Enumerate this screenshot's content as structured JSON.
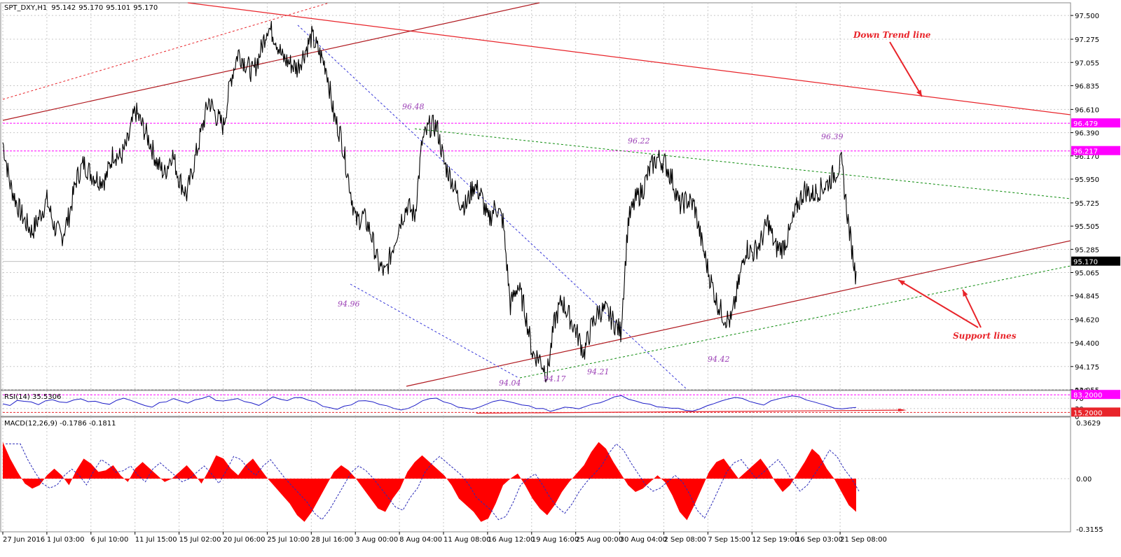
{
  "chart_data": [
    {
      "type": "line",
      "panel": "price",
      "title": "SPT_DXY,H1",
      "ohlc_header": [
        "95.142",
        "95.170",
        "95.101",
        "95.170"
      ],
      "ylim": [
        93.955,
        97.62
      ],
      "y_tick_labels": [
        "97.500",
        "97.275",
        "97.055",
        "96.835",
        "96.610",
        "96.390",
        "96.170",
        "95.950",
        "95.725",
        "95.505",
        "95.285",
        "95.065",
        "94.845",
        "94.620",
        "94.400",
        "94.175",
        "93.955"
      ],
      "x_tick_labels": [
        "27 Jun 2016",
        "1 Jul 03:00",
        "6 Jul 10:00",
        "11 Jul 15:00",
        "15 Jul 02:00",
        "20 Jul 06:00",
        "25 Jul 10:00",
        "28 Jul 16:00",
        "3 Aug 00:00",
        "8 Aug 04:00",
        "11 Aug 08:00",
        "16 Aug 12:00",
        "19 Aug 16:00",
        "25 Aug 00:00",
        "30 Aug 04:00",
        "2 Sep 08:00",
        "7 Sep 15:00",
        "12 Sep 19:00",
        "16 Sep 03:00",
        "21 Sep 08:00"
      ],
      "series": [
        {
          "values": [
            [
              0,
              96.3
            ],
            [
              1,
              95.9
            ],
            [
              2,
              95.7
            ],
            [
              3,
              95.55
            ],
            [
              4,
              95.45
            ],
            [
              5,
              95.6
            ],
            [
              6,
              95.75
            ],
            [
              7,
              95.5
            ],
            [
              8,
              95.4
            ],
            [
              9,
              95.6
            ],
            [
              10,
              95.95
            ],
            [
              11,
              96.1
            ],
            [
              12,
              96.0
            ],
            [
              13,
              95.95
            ],
            [
              14,
              95.95
            ],
            [
              15,
              96.2
            ],
            [
              16,
              96.15
            ],
            [
              17,
              96.3
            ],
            [
              18,
              96.6
            ],
            [
              19,
              96.45
            ],
            [
              20,
              96.3
            ],
            [
              21,
              96.1
            ],
            [
              22,
              96.0
            ],
            [
              23,
              96.2
            ],
            [
              24,
              95.95
            ],
            [
              25,
              95.8
            ],
            [
              26,
              96.1
            ],
            [
              27,
              96.4
            ],
            [
              28,
              96.7
            ],
            [
              29,
              96.55
            ],
            [
              30,
              96.45
            ],
            [
              31,
              96.9
            ],
            [
              32,
              97.15
            ],
            [
              33,
              97.05
            ],
            [
              34,
              96.95
            ],
            [
              35,
              97.15
            ],
            [
              36,
              97.4
            ],
            [
              37,
              97.3
            ],
            [
              38,
              97.1
            ],
            [
              39,
              97.05
            ],
            [
              40,
              97.0
            ],
            [
              41,
              97.15
            ],
            [
              42,
              97.3
            ],
            [
              43,
              97.15
            ],
            [
              44,
              97.0
            ],
            [
              45,
              96.55
            ],
            [
              46,
              96.35
            ],
            [
              47,
              95.95
            ],
            [
              48,
              95.55
            ],
            [
              49,
              95.6
            ],
            [
              50,
              95.45
            ],
            [
              51,
              95.15
            ],
            [
              52,
              95.05
            ],
            [
              53,
              95.3
            ],
            [
              54,
              95.55
            ],
            [
              55,
              95.7
            ],
            [
              56,
              95.6
            ],
            [
              57,
              96.3
            ],
            [
              58,
              96.45
            ],
            [
              59,
              96.45
            ],
            [
              60,
              96.1
            ],
            [
              61,
              95.95
            ],
            [
              62,
              95.75
            ],
            [
              63,
              95.7
            ],
            [
              64,
              95.9
            ],
            [
              65,
              95.8
            ],
            [
              66,
              95.55
            ],
            [
              67,
              95.7
            ],
            [
              68,
              95.55
            ],
            [
              69,
              94.75
            ],
            [
              70,
              94.95
            ],
            [
              71,
              94.7
            ],
            [
              72,
              94.3
            ],
            [
              73,
              94.25
            ],
            [
              74,
              94.1
            ],
            [
              75,
              94.6
            ],
            [
              76,
              94.8
            ],
            [
              77,
              94.65
            ],
            [
              78,
              94.5
            ],
            [
              79,
              94.3
            ],
            [
              80,
              94.55
            ],
            [
              81,
              94.7
            ],
            [
              82,
              94.7
            ],
            [
              83,
              94.6
            ],
            [
              84,
              94.5
            ],
            [
              85,
              95.55
            ],
            [
              86,
              95.75
            ],
            [
              87,
              95.85
            ],
            [
              88,
              96.05
            ],
            [
              89,
              96.15
            ],
            [
              90,
              96.1
            ],
            [
              91,
              95.95
            ],
            [
              92,
              95.7
            ],
            [
              93,
              95.75
            ],
            [
              94,
              95.7
            ],
            [
              95,
              95.35
            ],
            [
              96,
              95.05
            ],
            [
              97,
              94.8
            ],
            [
              98,
              94.65
            ],
            [
              99,
              94.6
            ],
            [
              100,
              94.95
            ],
            [
              101,
              95.3
            ],
            [
              102,
              95.25
            ],
            [
              103,
              95.35
            ],
            [
              104,
              95.55
            ],
            [
              105,
              95.3
            ],
            [
              106,
              95.3
            ],
            [
              107,
              95.45
            ],
            [
              108,
              95.7
            ],
            [
              109,
              95.85
            ],
            [
              110,
              95.8
            ],
            [
              111,
              95.85
            ],
            [
              112,
              95.9
            ],
            [
              113,
              96.0
            ],
            [
              114,
              96.1
            ],
            [
              115,
              95.5
            ],
            [
              116,
              95.0
            ]
          ]
        }
      ]
    },
    {
      "type": "line",
      "panel": "rsi",
      "title": "RSI(14) 35.5306",
      "ylim": [
        0,
        100
      ],
      "y_tick_labels": [
        "100",
        "70",
        "30",
        "0"
      ],
      "series": [
        {
          "values": [
            52,
            44,
            58,
            62,
            55,
            48,
            60,
            66,
            58,
            50,
            62,
            68,
            55,
            60,
            52,
            48,
            62,
            72,
            65,
            50,
            40,
            36,
            55,
            60,
            66,
            58,
            50,
            62,
            70,
            75,
            62,
            58,
            64,
            70,
            60,
            52,
            46,
            62,
            76,
            64,
            58,
            70,
            76,
            66,
            52,
            40,
            30,
            28,
            36,
            48,
            60,
            62,
            55,
            46,
            38,
            32,
            28,
            34,
            44,
            60,
            70,
            72,
            58,
            46,
            36,
            30,
            28,
            38,
            48,
            60,
            66,
            58,
            50,
            44,
            40,
            32,
            28,
            22,
            28,
            36,
            34,
            30,
            36,
            44,
            50,
            64,
            78,
            76,
            66,
            60,
            52,
            46,
            40,
            36,
            34,
            30,
            24,
            20,
            28,
            38,
            52,
            62,
            70,
            74,
            66,
            56,
            48,
            46,
            56,
            66,
            74,
            80,
            76,
            66,
            58,
            48,
            40,
            34,
            30,
            34,
            35.5
          ]
        }
      ]
    },
    {
      "type": "area",
      "panel": "macd",
      "title": "MACD(12,26,9) -0.1786 -0.1811",
      "ylim": [
        -0.32,
        0.37
      ],
      "y_tick_labels": [
        "0.3629",
        "0.00",
        "-0.3155"
      ],
      "series": [
        {
          "values": [
            0.22,
            0.12,
            0.04,
            -0.03,
            -0.06,
            -0.04,
            0.02,
            0.06,
            0.02,
            -0.04,
            0.05,
            0.12,
            0.09,
            0.04,
            0.05,
            0.08,
            0.02,
            -0.02,
            0.06,
            0.1,
            0.06,
            0.02,
            -0.02,
            0.0,
            0.04,
            0.08,
            0.03,
            -0.03,
            0.05,
            0.14,
            0.12,
            0.06,
            0.02,
            0.08,
            0.12,
            0.06,
            0.0,
            -0.05,
            -0.1,
            -0.15,
            -0.22,
            -0.26,
            -0.2,
            -0.12,
            -0.04,
            0.04,
            0.08,
            0.05,
            0.0,
            -0.06,
            -0.12,
            -0.18,
            -0.2,
            -0.12,
            -0.06,
            0.04,
            0.1,
            0.14,
            0.1,
            0.06,
            0.02,
            -0.04,
            -0.12,
            -0.16,
            -0.2,
            -0.26,
            -0.24,
            -0.15,
            -0.04,
            0.0,
            0.03,
            -0.04,
            -0.12,
            -0.18,
            -0.22,
            -0.16,
            -0.08,
            -0.02,
            0.03,
            0.08,
            0.16,
            0.22,
            0.18,
            0.1,
            0.03,
            -0.04,
            -0.08,
            -0.06,
            -0.02,
            0.02,
            -0.02,
            -0.1,
            -0.2,
            -0.25,
            -0.16,
            -0.06,
            0.04,
            0.1,
            0.12,
            0.06,
            0.0,
            0.04,
            0.08,
            0.12,
            0.06,
            -0.02,
            -0.08,
            -0.04,
            0.03,
            0.1,
            0.18,
            0.14,
            0.06,
            0.0,
            -0.08,
            -0.16,
            -0.2
          ]
        }
      ]
    }
  ],
  "annotations": {
    "price_labels": [
      {
        "text": "96.48",
        "value": 96.48
      },
      {
        "text": "94.96",
        "value": 94.96
      },
      {
        "text": "94.04",
        "value": 94.04
      },
      {
        "text": "94.17",
        "value": 94.17
      },
      {
        "text": "94.21",
        "value": 94.21
      },
      {
        "text": "96.22",
        "value": 96.22
      },
      {
        "text": "94.42",
        "value": 94.42
      },
      {
        "text": "96.39",
        "value": 96.39
      }
    ],
    "down_trend": "Down Trend line",
    "support": "Support lines"
  },
  "level_tags": {
    "resistance_1": "96.479",
    "resistance_2": "96.217",
    "current": "95.170",
    "rsi_upper": "83.2000",
    "rsi_lower": "15.2000"
  },
  "colors": {
    "price": "#000000",
    "trend": "#e8242a",
    "channel": "#b0191f",
    "level": "#ff00ff",
    "green": "#0a8a0a",
    "blue_channel": "#3535d8",
    "rsi": "#1d1dc8",
    "macd_hist": "#ff0000",
    "grid": "#c8c8c8"
  }
}
